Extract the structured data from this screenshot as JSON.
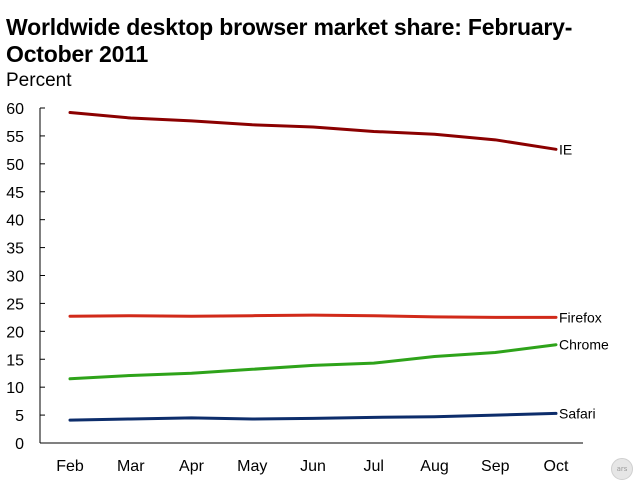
{
  "chart_data": {
    "type": "line",
    "title": "Worldwide desktop browser market share: February-October 2011",
    "ylabel": "Percent",
    "xlabel": "",
    "categories": [
      "Feb",
      "Mar",
      "Apr",
      "May",
      "Jun",
      "Jul",
      "Aug",
      "Sep",
      "Oct"
    ],
    "ylim": [
      0,
      60
    ],
    "yticks": [
      "0",
      "5",
      "10",
      "15",
      "20",
      "25",
      "30",
      "35",
      "40",
      "45",
      "50",
      "55",
      "60"
    ],
    "grid": false,
    "legend": "inline labels at line ends",
    "series": [
      {
        "name": "IE",
        "color": "#8b0000",
        "values": [
          59.2,
          58.2,
          57.7,
          57.0,
          56.6,
          55.8,
          55.3,
          54.3,
          52.6
        ]
      },
      {
        "name": "Firefox",
        "color": "#d12a1a",
        "values": [
          22.7,
          22.8,
          22.7,
          22.8,
          22.9,
          22.8,
          22.6,
          22.5,
          22.5
        ]
      },
      {
        "name": "Chrome",
        "color": "#2ea31a",
        "values": [
          11.5,
          12.1,
          12.5,
          13.2,
          13.9,
          14.3,
          15.5,
          16.2,
          17.6
        ]
      },
      {
        "name": "Safari",
        "color": "#0d2d6b",
        "values": [
          4.1,
          4.3,
          4.5,
          4.3,
          4.4,
          4.6,
          4.7,
          5.0,
          5.3
        ]
      }
    ]
  },
  "watermark": "ars"
}
